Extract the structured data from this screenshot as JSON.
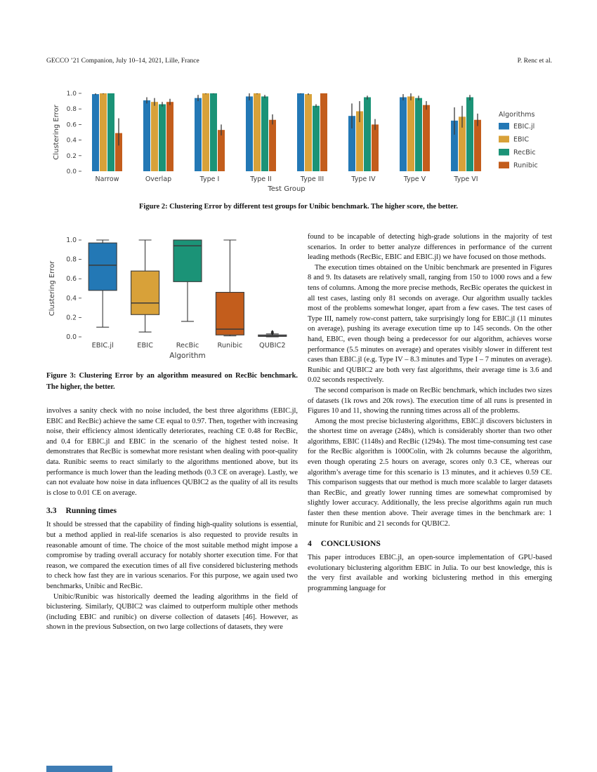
{
  "header": {
    "left": "GECCO ’21 Companion, July 10–14, 2021, Lille, France",
    "right": "P. Renc et al."
  },
  "colors": {
    "bar_blue": "#2378b5",
    "bar_gold": "#d8a139",
    "bar_green": "#1b9377",
    "bar_orange": "#c35d1c",
    "chart_label": "#3b3b3b",
    "bottom_bar_blue": "#3e7cb4"
  },
  "chart_data": [
    {
      "id": "figure2",
      "type": "bar",
      "title": "",
      "xlabel": "Test Group",
      "ylabel": "Clustering Error",
      "ylim": [
        0.0,
        1.05
      ],
      "yticks": [
        0.0,
        0.2,
        0.4,
        0.6,
        0.8,
        1.0
      ],
      "grid": false,
      "legend_title": "Algorithms",
      "legend_position": "right",
      "categories": [
        "Narrow",
        "Overlap",
        "Type I",
        "Type II",
        "Type III",
        "Type IV",
        "Type V",
        "Type VI"
      ],
      "series": [
        {
          "name": "EBIC.jl",
          "color": "#2378b5",
          "values": [
            0.99,
            0.91,
            0.94,
            0.96,
            1.0,
            0.71,
            0.95,
            0.65
          ],
          "err_low": [
            0.98,
            0.87,
            0.9,
            0.91,
            0.99,
            0.55,
            0.91,
            0.47
          ],
          "err_high": [
            1.0,
            0.95,
            0.98,
            1.0,
            1.0,
            0.87,
            0.99,
            0.82
          ]
        },
        {
          "name": "EBIC",
          "color": "#d8a139",
          "values": [
            1.0,
            0.89,
            1.0,
            1.0,
            0.99,
            0.77,
            0.96,
            0.7
          ],
          "err_low": [
            0.99,
            0.84,
            0.99,
            0.99,
            0.98,
            0.63,
            0.91,
            0.56
          ],
          "err_high": [
            1.0,
            0.94,
            1.0,
            1.0,
            1.0,
            0.9,
            1.0,
            0.84
          ]
        },
        {
          "name": "RecBic",
          "color": "#1b9377",
          "values": [
            1.0,
            0.86,
            1.0,
            0.96,
            0.84,
            0.95,
            0.94,
            0.95
          ],
          "err_low": [
            1.0,
            0.83,
            0.99,
            0.94,
            0.82,
            0.92,
            0.91,
            0.91
          ],
          "err_high": [
            1.0,
            0.89,
            1.0,
            0.98,
            0.86,
            0.97,
            0.97,
            0.98
          ]
        },
        {
          "name": "Runibic",
          "color": "#c35d1c",
          "values": [
            0.49,
            0.89,
            0.53,
            0.66,
            1.0,
            0.6,
            0.85,
            0.66
          ],
          "err_low": [
            0.33,
            0.85,
            0.46,
            0.6,
            1.0,
            0.53,
            0.79,
            0.58
          ],
          "err_high": [
            0.68,
            0.93,
            0.6,
            0.73,
            1.0,
            0.67,
            0.9,
            0.74
          ]
        }
      ]
    },
    {
      "id": "figure3",
      "type": "boxplot",
      "title": "",
      "xlabel": "Algorithm",
      "ylabel": "Clustering Error",
      "ylim": [
        0.0,
        1.05
      ],
      "yticks": [
        0.0,
        0.2,
        0.4,
        0.6,
        0.8,
        1.0
      ],
      "grid": false,
      "categories": [
        "EBIC.jl",
        "EBIC",
        "RecBic",
        "Runibic",
        "QUBIC2"
      ],
      "boxes": [
        {
          "label": "EBIC.jl",
          "color": "#2378b5",
          "whisker_low": 0.1,
          "q1": 0.48,
          "median": 0.74,
          "q3": 0.97,
          "whisker_high": 1.0,
          "fliers": []
        },
        {
          "label": "EBIC",
          "color": "#d8a139",
          "whisker_low": 0.05,
          "q1": 0.23,
          "median": 0.35,
          "q3": 0.68,
          "whisker_high": 1.0,
          "fliers": []
        },
        {
          "label": "RecBic",
          "color": "#1b9377",
          "whisker_low": 0.16,
          "q1": 0.57,
          "median": 0.94,
          "q3": 1.0,
          "whisker_high": 1.0,
          "fliers": []
        },
        {
          "label": "Runibic",
          "color": "#c35d1c",
          "whisker_low": 0.01,
          "q1": 0.02,
          "median": 0.08,
          "q3": 0.46,
          "whisker_high": 1.0,
          "fliers": []
        },
        {
          "label": "QUBIC2",
          "color": "#c9cdd3",
          "whisker_low": 0.0,
          "q1": 0.005,
          "median": 0.01,
          "q3": 0.02,
          "whisker_high": 0.03,
          "fliers": [
            0.035,
            0.05
          ]
        }
      ]
    }
  ],
  "figure2_caption": "Figure 2: Clustering Error by different test groups for Unibic benchmark. The higher score, the better.",
  "figure3_caption": "Figure 3: Clustering Error by an algorithm measured on RecBic benchmark. The higher, the better.",
  "left_column": {
    "para1": "involves a sanity check with no noise included, the best three algorithms (EBIC.jl, EBIC and RecBic) achieve the same CE equal to 0.97. Then, together with increasing noise, their efficiency almost identically deteriorates, reaching CE 0.48 for RecBic, and 0.4 for EBIC.jl and EBIC in the scenario of the highest tested noise. It demonstrates that RecBic is somewhat more resistant when dealing with poor-quality data. Runibic seems to react similarly to the algorithms mentioned above, but its performance is much lower than the leading methods (0.3 CE on average). Lastly, we can not evaluate how noise in data influences QUBIC2 as the quality of all its results is close to 0.01 CE on average.",
    "heading_number": "3.3",
    "heading_title": "Running times",
    "para2": "It should be stressed that the capability of finding high-quality solutions is essential, but a method applied in real-life scenarios is also requested to provide results in reasonable amount of time. The choice of the most suitable method might impose a compromise by trading overall accuracy for notably shorter execution time. For that reason, we compared the execution times of all five considered biclustering methods to check how fast they are in various scenarios. For this purpose, we again used two benchmarks, Unibic and RecBic.",
    "para3": "Unibic/Runibic was historically deemed the leading algorithms in the field of biclustering. Similarly, QUBIC2 was claimed to outperform multiple other methods (including EBIC and runibic) on diverse collection of datasets [46]. However, as shown in the previous Subsection, on two large collections of datasets, they were"
  },
  "right_column": {
    "para1": "found to be incapable of detecting high-grade solutions in the majority of test scenarios. In order to better analyze differences in performance of the current leading methods (RecBic, EBIC and EBIC.jl) we have focused on those methods.",
    "para2": "The execution times obtained on the Unibic benchmark are presented in Figures 8 and 9. Its datasets are relatively small, ranging from 150 to 1000 rows and a few tens of columns. Among the more precise methods, RecBic operates the quickest in all test cases, lasting only 81 seconds on average. Our algorithm usually tackles most of the problems somewhat longer, apart from a few cases. The test cases of Type III, namely row-const pattern, take surprisingly long for EBIC.jl (11 minutes on average), pushing its average execution time up to 145 seconds. On the other hand, EBIC, even though being a predecessor for our algorithm, achieves worse performance (5.5 minutes on average) and operates visibly slower in different test cases than EBIC.jl (e.g. Type IV – 8.3 minutes and Type I – 7 minutes on average). Runibic and QUBIC2 are both very fast algorithms, their average time is 3.6 and 0.02 seconds respectively.",
    "para3": "The second comparison is made on RecBic benchmark, which includes two sizes of datasets (1k rows and 20k rows). The execution time of all runs is presented in Figures 10 and 11, showing the running times across all of the problems.",
    "para4": "Among the most precise biclustering algorithms, EBIC.jl discovers biclusters in the shortest time on average (248s), which is considerably shorter than two other algorithms, EBIC (1148s) and RecBic (1294s). The most time-consuming test case for the RecBic algorithm is 1000Colin, with 2k columns because the algorithm, even though operating 2.5 hours on average, scores only 0.3 CE, whereas our algorithm’s average time for this scenario is 13 minutes, and it achieves 0.59 CE. This comparison suggests that our method is much more scalable to larger datasets than RecBic, and greatly lower running times are somewhat compromised by slightly lower accuracy. Additionally, the less precise algorithms again run much faster then these mention above. Their average times in the benchmark are: 1 minute for Runibic and 21 seconds for QUBIC2.",
    "heading_number": "4",
    "heading_title": "CONCLUSIONS",
    "para5": "This paper introduces EBIC.jl, an open-source implementation of GPU-based evolutionary biclustering algorithm EBIC in Julia. To our best knowledge, this is the very first available and working biclustering method in this emerging programming language for"
  }
}
